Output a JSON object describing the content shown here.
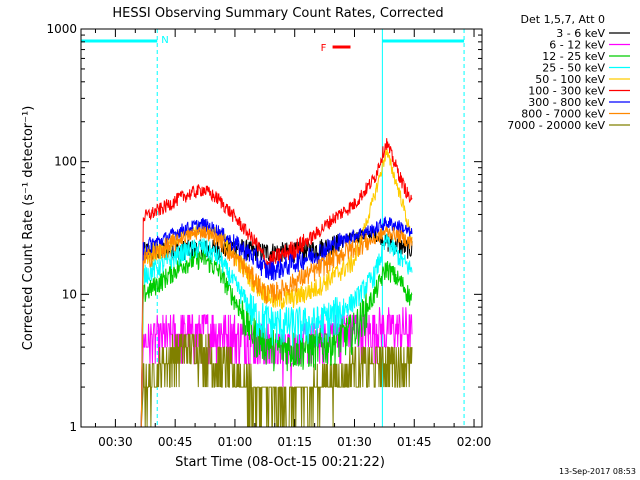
{
  "chart_data": {
    "type": "line",
    "title": "HESSI Observing Summary Count Rates, Corrected",
    "xlabel": "Start Time (08-Oct-15 00:21:22)",
    "ylabel": "Corrected Count Rate (s⁻¹ detector⁻¹)",
    "y_scale": "log",
    "ylim": [
      1,
      1000
    ],
    "xlim_minutes": [
      21.37,
      122
    ],
    "x_ticks": [
      "00:30",
      "00:45",
      "01:00",
      "01:15",
      "01:30",
      "01:45",
      "02:00"
    ],
    "x_tick_minutes": [
      30,
      45,
      60,
      75,
      90,
      105,
      120
    ],
    "y_ticks": [
      "1",
      "10",
      "100",
      "1000"
    ],
    "y_tick_values": [
      1,
      10,
      100,
      1000
    ],
    "legend_title": "Det 1,5,7, Att 0",
    "legend_position": "right",
    "night_lines_minutes": [
      21.37,
      40.5,
      97.0,
      117.5
    ],
    "night_markers": [
      {
        "label": "N",
        "start_minutes": 21.37,
        "end_minutes": 40.5
      },
      {
        "label": "",
        "start_minutes": 97.0,
        "end_minutes": 117.5
      }
    ],
    "flare_marker": {
      "label": "F",
      "start_minutes": 84.5,
      "end_minutes": 89.0
    },
    "series": [
      {
        "name": "3 - 6 keV",
        "color": "#000000",
        "x": [
          36.5,
          37.0,
          45,
          55,
          60,
          65,
          70,
          75,
          80,
          85,
          90,
          95,
          98,
          102,
          104.5
        ],
        "y": [
          1,
          21,
          22,
          22,
          23,
          21,
          21,
          21,
          22,
          24,
          27,
          29,
          25,
          23,
          22
        ]
      },
      {
        "name": "6 - 12 keV",
        "color": "#ff00ff",
        "x": [
          36.5,
          37.0,
          45,
          55,
          60,
          65,
          70,
          75,
          80,
          85,
          90,
          95,
          98,
          102,
          104.5
        ],
        "y": [
          1,
          4.5,
          5.0,
          5.5,
          5.0,
          4.5,
          4.0,
          4.0,
          4.5,
          5.5,
          5.5,
          5.5,
          5.5,
          5.5,
          5.5
        ]
      },
      {
        "name": "12 - 25 keV",
        "color": "#00cc00",
        "x": [
          36.5,
          37.0,
          42,
          47,
          52,
          56,
          60,
          65,
          70,
          75,
          80,
          85,
          90,
          95,
          98,
          102,
          104.5
        ],
        "y": [
          1,
          10,
          13,
          17,
          19,
          15,
          9,
          5,
          4,
          4,
          4,
          4.5,
          5.5,
          10,
          16,
          12,
          9
        ]
      },
      {
        "name": "25 - 50 keV",
        "color": "#00ffff",
        "x": [
          36.5,
          37.0,
          42,
          47,
          52,
          56,
          60,
          65,
          70,
          75,
          80,
          85,
          90,
          95,
          98,
          102,
          104.5
        ],
        "y": [
          1,
          14,
          17,
          21,
          23,
          19,
          12,
          7,
          6,
          6,
          6,
          7,
          9,
          14,
          26,
          18,
          15
        ]
      },
      {
        "name": "50 - 100 keV",
        "color": "#ffcc00",
        "x": [
          36.5,
          37.0,
          42,
          47,
          52,
          56,
          60,
          65,
          70,
          75,
          80,
          85,
          90,
          95,
          98,
          102,
          104.5
        ],
        "y": [
          1,
          20,
          23,
          28,
          32,
          28,
          20,
          12,
          9,
          9.5,
          11,
          14,
          18,
          55,
          120,
          50,
          25
        ]
      },
      {
        "name": "100 - 300 keV",
        "color": "#ff0000",
        "x": [
          36.5,
          37.0,
          42,
          47,
          52,
          56,
          60,
          65,
          68,
          72,
          76,
          80,
          85,
          90,
          95,
          98,
          102,
          104.5
        ],
        "y": [
          1,
          38,
          45,
          55,
          62,
          52,
          38,
          25,
          17,
          20,
          23,
          28,
          38,
          48,
          75,
          140,
          70,
          48
        ]
      },
      {
        "name": "300 - 800 keV",
        "color": "#0000ff",
        "x": [
          36.5,
          37.0,
          42,
          47,
          52,
          56,
          60,
          65,
          68,
          72,
          76,
          80,
          85,
          90,
          95,
          98,
          102,
          104.5
        ],
        "y": [
          1,
          22,
          26,
          31,
          34,
          30,
          24,
          19,
          15,
          16,
          18,
          20,
          24,
          28,
          31,
          35,
          32,
          28
        ]
      },
      {
        "name": "800 - 7000 keV",
        "color": "#ff8800",
        "x": [
          36.5,
          37.0,
          42,
          47,
          52,
          56,
          60,
          65,
          68,
          72,
          76,
          80,
          85,
          90,
          95,
          98,
          102,
          104.5
        ],
        "y": [
          1,
          18,
          22,
          27,
          30,
          26,
          19,
          13,
          10,
          11,
          13,
          15,
          19,
          23,
          26,
          30,
          27,
          24
        ]
      },
      {
        "name": "7000 - 20000 keV",
        "color": "#808000",
        "x": [
          36.5,
          37.0,
          42,
          47,
          52,
          56,
          60,
          65,
          70,
          75,
          80,
          85,
          90,
          95,
          98,
          102,
          104.5
        ],
        "y": [
          1,
          2.0,
          3.0,
          4.0,
          4.0,
          3.0,
          2.5,
          1.8,
          1.5,
          1.6,
          1.9,
          2.5,
          2.8,
          3.0,
          3.2,
          3.0,
          3.0
        ]
      }
    ]
  },
  "footer": {
    "timestamp": "13-Sep-2017 08:53"
  }
}
